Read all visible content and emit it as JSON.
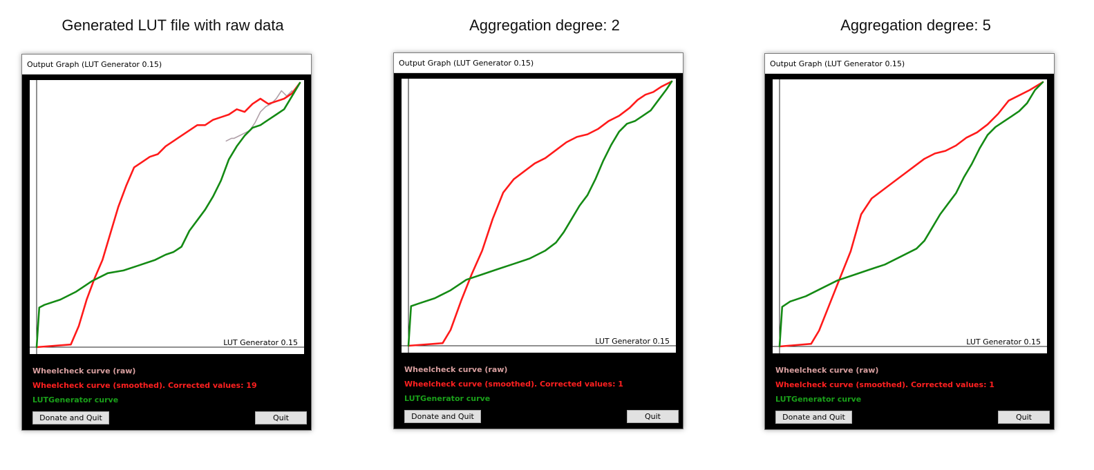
{
  "colors": {
    "raw": "#b0a0a8",
    "smoothed": "#ff1a1a",
    "lutgen": "#148a14",
    "legend_raw": "#d9a0a0",
    "legend_smoothed": "#ff2020",
    "legend_lutgen": "#1aa01a"
  },
  "panels": [
    {
      "heading": "Generated LUT file with raw data",
      "window_title": "Output Graph (LUT Generator 0.15)",
      "watermark": "LUT Generator 0.15",
      "legend_raw": "Wheelcheck curve (raw)",
      "legend_smoothed": "Wheelcheck curve (smoothed). Corrected values:  19",
      "legend_lutgen": "LUTGenerator curve",
      "donate_button": "Donate and Quit",
      "quit_button": "Quit"
    },
    {
      "heading": "Aggregation degree: 2",
      "window_title": "Output Graph (LUT Generator 0.15)",
      "watermark": "LUT Generator 0.15",
      "legend_raw": "Wheelcheck curve (raw)",
      "legend_smoothed": "Wheelcheck curve (smoothed). Corrected values:  1",
      "legend_lutgen": "LUTGenerator curve",
      "donate_button": "Donate and Quit",
      "quit_button": "Quit"
    },
    {
      "heading": "Aggregation degree: 5",
      "window_title": "Output Graph (LUT Generator 0.15)",
      "watermark": "LUT Generator 0.15",
      "legend_raw": "Wheelcheck curve (raw)",
      "legend_smoothed": "Wheelcheck curve (smoothed). Corrected values:  1",
      "legend_lutgen": "LUTGenerator curve",
      "donate_button": "Donate and Quit",
      "quit_button": "Quit"
    }
  ],
  "chart_data": [
    {
      "type": "line",
      "xlim": [
        0,
        1
      ],
      "ylim": [
        0,
        1
      ],
      "series": [
        {
          "name": "Wheelcheck curve (raw)",
          "x": [
            0.72,
            0.74,
            0.75,
            0.77,
            0.79,
            0.81,
            0.83,
            0.85,
            0.87,
            0.89,
            0.91,
            0.93,
            0.95,
            0.97
          ],
          "y": [
            0.78,
            0.79,
            0.79,
            0.8,
            0.81,
            0.82,
            0.85,
            0.89,
            0.91,
            0.92,
            0.94,
            0.97,
            0.95,
            0.97
          ]
        },
        {
          "name": "Wheelcheck curve (smoothed). Corrected values:  19",
          "x": [
            0.0,
            0.13,
            0.16,
            0.19,
            0.22,
            0.25,
            0.28,
            0.31,
            0.34,
            0.37,
            0.4,
            0.43,
            0.46,
            0.49,
            0.52,
            0.55,
            0.58,
            0.61,
            0.64,
            0.67,
            0.7,
            0.73,
            0.76,
            0.79,
            0.82,
            0.85,
            0.88,
            0.91,
            0.94,
            0.97,
            1.0
          ],
          "y": [
            0.0,
            0.01,
            0.08,
            0.18,
            0.26,
            0.33,
            0.43,
            0.53,
            0.61,
            0.68,
            0.7,
            0.72,
            0.73,
            0.76,
            0.78,
            0.8,
            0.82,
            0.84,
            0.84,
            0.86,
            0.87,
            0.88,
            0.9,
            0.89,
            0.92,
            0.94,
            0.92,
            0.93,
            0.94,
            0.96,
            1.0
          ]
        },
        {
          "name": "LUTGenerator curve",
          "x": [
            0.0,
            0.01,
            0.03,
            0.09,
            0.15,
            0.21,
            0.27,
            0.33,
            0.39,
            0.45,
            0.49,
            0.52,
            0.55,
            0.58,
            0.61,
            0.64,
            0.67,
            0.7,
            0.73,
            0.76,
            0.79,
            0.82,
            0.85,
            0.88,
            0.91,
            0.94,
            0.97,
            1.0
          ],
          "y": [
            0.0,
            0.15,
            0.16,
            0.18,
            0.21,
            0.25,
            0.28,
            0.29,
            0.31,
            0.33,
            0.35,
            0.36,
            0.38,
            0.44,
            0.48,
            0.52,
            0.57,
            0.63,
            0.71,
            0.76,
            0.8,
            0.83,
            0.84,
            0.86,
            0.88,
            0.9,
            0.95,
            1.0
          ]
        }
      ]
    },
    {
      "type": "line",
      "xlim": [
        0,
        1
      ],
      "ylim": [
        0,
        1
      ],
      "series": [
        {
          "name": "Wheelcheck curve (smoothed). Corrected values:  1",
          "x": [
            0.0,
            0.13,
            0.16,
            0.2,
            0.24,
            0.28,
            0.32,
            0.36,
            0.4,
            0.44,
            0.48,
            0.52,
            0.56,
            0.6,
            0.64,
            0.68,
            0.72,
            0.76,
            0.8,
            0.84,
            0.87,
            0.9,
            0.93,
            0.96,
            1.0
          ],
          "y": [
            0.0,
            0.01,
            0.06,
            0.17,
            0.27,
            0.36,
            0.48,
            0.58,
            0.63,
            0.66,
            0.69,
            0.71,
            0.74,
            0.77,
            0.79,
            0.8,
            0.82,
            0.85,
            0.87,
            0.9,
            0.93,
            0.95,
            0.96,
            0.98,
            1.0
          ]
        },
        {
          "name": "LUTGenerator curve",
          "x": [
            0.0,
            0.01,
            0.04,
            0.1,
            0.16,
            0.22,
            0.28,
            0.34,
            0.4,
            0.46,
            0.52,
            0.56,
            0.59,
            0.62,
            0.65,
            0.68,
            0.71,
            0.74,
            0.77,
            0.8,
            0.83,
            0.86,
            0.89,
            0.92,
            0.95,
            0.98,
            1.0
          ],
          "y": [
            0.0,
            0.15,
            0.16,
            0.18,
            0.21,
            0.25,
            0.27,
            0.29,
            0.31,
            0.33,
            0.36,
            0.39,
            0.43,
            0.48,
            0.53,
            0.57,
            0.63,
            0.7,
            0.76,
            0.81,
            0.84,
            0.85,
            0.87,
            0.89,
            0.93,
            0.97,
            1.0
          ]
        }
      ]
    },
    {
      "type": "line",
      "xlim": [
        0,
        1
      ],
      "ylim": [
        0,
        1
      ],
      "series": [
        {
          "name": "Wheelcheck curve (smoothed). Corrected values:  1",
          "x": [
            0.0,
            0.12,
            0.15,
            0.19,
            0.23,
            0.27,
            0.31,
            0.35,
            0.39,
            0.43,
            0.47,
            0.51,
            0.55,
            0.59,
            0.63,
            0.67,
            0.71,
            0.75,
            0.79,
            0.83,
            0.87,
            0.91,
            0.95,
            1.0
          ],
          "y": [
            0.0,
            0.01,
            0.06,
            0.16,
            0.26,
            0.36,
            0.5,
            0.56,
            0.59,
            0.62,
            0.65,
            0.68,
            0.71,
            0.73,
            0.74,
            0.76,
            0.79,
            0.81,
            0.84,
            0.88,
            0.93,
            0.95,
            0.97,
            1.0
          ]
        },
        {
          "name": "LUTGenerator curve",
          "x": [
            0.0,
            0.01,
            0.04,
            0.1,
            0.16,
            0.22,
            0.28,
            0.34,
            0.4,
            0.46,
            0.52,
            0.55,
            0.58,
            0.61,
            0.64,
            0.67,
            0.7,
            0.73,
            0.76,
            0.79,
            0.82,
            0.85,
            0.88,
            0.91,
            0.94,
            0.97,
            1.0
          ],
          "y": [
            0.0,
            0.15,
            0.17,
            0.19,
            0.22,
            0.25,
            0.27,
            0.29,
            0.31,
            0.34,
            0.37,
            0.4,
            0.45,
            0.5,
            0.54,
            0.58,
            0.64,
            0.69,
            0.75,
            0.8,
            0.83,
            0.85,
            0.87,
            0.89,
            0.92,
            0.97,
            1.0
          ]
        }
      ]
    }
  ]
}
